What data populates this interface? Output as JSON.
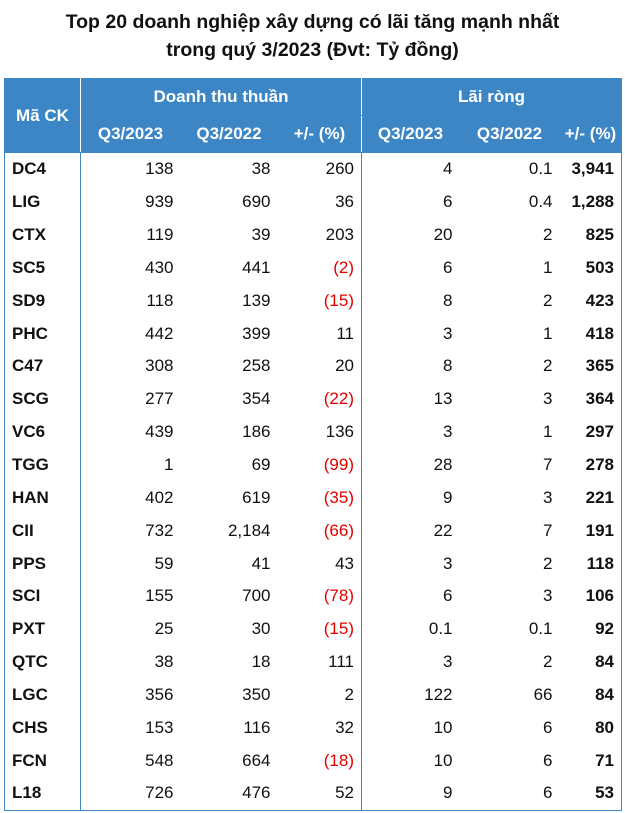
{
  "title_line1": "Top 20 doanh nghiệp xây dựng có lãi tăng mạnh nhất",
  "title_line2": "trong quý 3/2023 (Đvt: Tỷ đồng)",
  "colors": {
    "header_bg": "#3d86c6",
    "header_text": "#ffffff",
    "negative": "#e00000"
  },
  "chart_data": {
    "type": "table",
    "header": {
      "ma_ck": "Mã CK",
      "group_revenue": "Doanh thu thuần",
      "group_profit": "Lãi ròng",
      "sub": [
        "Q3/2023",
        "Q3/2022",
        "+/- (%)",
        "Q3/2023",
        "Q3/2022",
        "+/- (%)"
      ]
    },
    "rows": [
      {
        "code": "DC4",
        "rev23": "138",
        "rev22": "38",
        "rev_chg": "260",
        "prof23": "4",
        "prof22": "0.1",
        "prof_chg": "3,941"
      },
      {
        "code": "LIG",
        "rev23": "939",
        "rev22": "690",
        "rev_chg": "36",
        "prof23": "6",
        "prof22": "0.4",
        "prof_chg": "1,288"
      },
      {
        "code": "CTX",
        "rev23": "119",
        "rev22": "39",
        "rev_chg": "203",
        "prof23": "20",
        "prof22": "2",
        "prof_chg": "825"
      },
      {
        "code": "SC5",
        "rev23": "430",
        "rev22": "441",
        "rev_chg": "(2)",
        "prof23": "6",
        "prof22": "1",
        "prof_chg": "503"
      },
      {
        "code": "SD9",
        "rev23": "118",
        "rev22": "139",
        "rev_chg": "(15)",
        "prof23": "8",
        "prof22": "2",
        "prof_chg": "423"
      },
      {
        "code": "PHC",
        "rev23": "442",
        "rev22": "399",
        "rev_chg": "11",
        "prof23": "3",
        "prof22": "1",
        "prof_chg": "418"
      },
      {
        "code": "C47",
        "rev23": "308",
        "rev22": "258",
        "rev_chg": "20",
        "prof23": "8",
        "prof22": "2",
        "prof_chg": "365"
      },
      {
        "code": "SCG",
        "rev23": "277",
        "rev22": "354",
        "rev_chg": "(22)",
        "prof23": "13",
        "prof22": "3",
        "prof_chg": "364"
      },
      {
        "code": "VC6",
        "rev23": "439",
        "rev22": "186",
        "rev_chg": "136",
        "prof23": "3",
        "prof22": "1",
        "prof_chg": "297"
      },
      {
        "code": "TGG",
        "rev23": "1",
        "rev22": "69",
        "rev_chg": "(99)",
        "prof23": "28",
        "prof22": "7",
        "prof_chg": "278"
      },
      {
        "code": "HAN",
        "rev23": "402",
        "rev22": "619",
        "rev_chg": "(35)",
        "prof23": "9",
        "prof22": "3",
        "prof_chg": "221"
      },
      {
        "code": "CII",
        "rev23": "732",
        "rev22": "2,184",
        "rev_chg": "(66)",
        "prof23": "22",
        "prof22": "7",
        "prof_chg": "191"
      },
      {
        "code": "PPS",
        "rev23": "59",
        "rev22": "41",
        "rev_chg": "43",
        "prof23": "3",
        "prof22": "2",
        "prof_chg": "118"
      },
      {
        "code": "SCI",
        "rev23": "155",
        "rev22": "700",
        "rev_chg": "(78)",
        "prof23": "6",
        "prof22": "3",
        "prof_chg": "106"
      },
      {
        "code": "PXT",
        "rev23": "25",
        "rev22": "30",
        "rev_chg": "(15)",
        "prof23": "0.1",
        "prof22": "0.1",
        "prof_chg": "92"
      },
      {
        "code": "QTC",
        "rev23": "38",
        "rev22": "18",
        "rev_chg": "111",
        "prof23": "3",
        "prof22": "2",
        "prof_chg": "84"
      },
      {
        "code": "LGC",
        "rev23": "356",
        "rev22": "350",
        "rev_chg": "2",
        "prof23": "122",
        "prof22": "66",
        "prof_chg": "84"
      },
      {
        "code": "CHS",
        "rev23": "153",
        "rev22": "116",
        "rev_chg": "32",
        "prof23": "10",
        "prof22": "6",
        "prof_chg": "80"
      },
      {
        "code": "FCN",
        "rev23": "548",
        "rev22": "664",
        "rev_chg": "(18)",
        "prof23": "10",
        "prof22": "6",
        "prof_chg": "71"
      },
      {
        "code": "L18",
        "rev23": "726",
        "rev22": "476",
        "rev_chg": "52",
        "prof23": "9",
        "prof22": "6",
        "prof_chg": "53"
      }
    ]
  }
}
